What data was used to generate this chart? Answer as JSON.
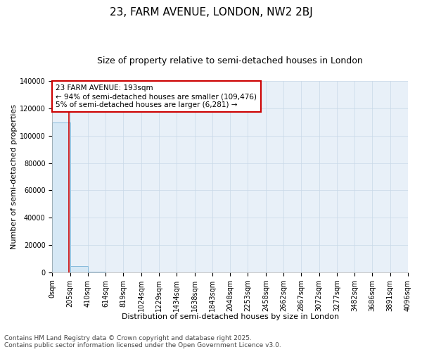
{
  "title": "23, FARM AVENUE, LONDON, NW2 2BJ",
  "subtitle": "Size of property relative to semi-detached houses in London",
  "xlabel": "Distribution of semi-detached houses by size in London",
  "ylabel": "Number of semi-detached properties",
  "annotation_title": "23 FARM AVENUE: 193sqm",
  "annotation_line1": "← 94% of semi-detached houses are smaller (109,476)",
  "annotation_line2": "5% of semi-detached houses are larger (6,281) →",
  "footer_line1": "Contains HM Land Registry data © Crown copyright and database right 2025.",
  "footer_line2": "Contains public sector information licensed under the Open Government Licence v3.0.",
  "bar_edges": [
    0,
    205,
    410,
    614,
    819,
    1024,
    1229,
    1434,
    1638,
    1843,
    2048,
    2253,
    2458,
    2662,
    2867,
    3072,
    3277,
    3482,
    3686,
    3891,
    4096
  ],
  "bar_heights": [
    109476,
    4800,
    280,
    120,
    80,
    55,
    40,
    30,
    22,
    18,
    14,
    11,
    9,
    8,
    6,
    5,
    4,
    3,
    2,
    1
  ],
  "bar_color": "#d6e8f5",
  "bar_edge_color": "#7ab4d8",
  "property_line_x": 193,
  "property_line_color": "#cc0000",
  "ylim": [
    0,
    140000
  ],
  "yticks": [
    0,
    20000,
    40000,
    60000,
    80000,
    100000,
    120000,
    140000
  ],
  "background_color": "#ffffff",
  "plot_bg_color": "#e8f0f8",
  "grid_color": "#c8d8e8",
  "title_fontsize": 11,
  "subtitle_fontsize": 9,
  "axis_label_fontsize": 8,
  "tick_fontsize": 7,
  "annotation_fontsize": 7.5,
  "footer_fontsize": 6.5
}
